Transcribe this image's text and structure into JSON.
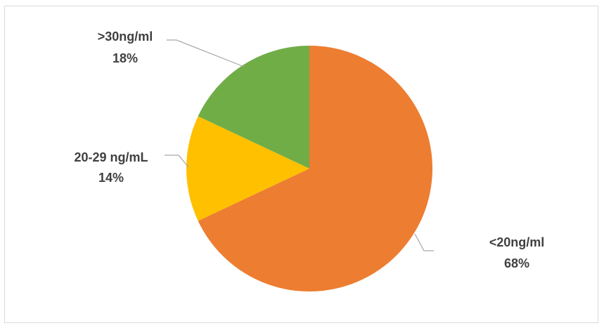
{
  "chart_data": {
    "type": "pie",
    "title": "",
    "slices": [
      {
        "label": "<20ng/ml",
        "value": 68,
        "value_label": "68%",
        "color": "#ED7D31"
      },
      {
        "label": "20-29 ng/mL",
        "value": 14,
        "value_label": "14%",
        "color": "#FFC000"
      },
      {
        "label": ">30ng/ml",
        "value": 18,
        "value_label": "18%",
        "color": "#70AD47"
      }
    ],
    "start_angle_deg": 0,
    "direction": "clockwise",
    "legend": "none",
    "leader_line_color": "#a6a6a6"
  }
}
